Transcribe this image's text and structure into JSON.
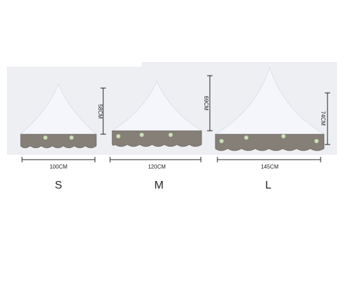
{
  "tents": [
    {
      "size": "S",
      "width": "100CM",
      "height": "58CM"
    },
    {
      "size": "M",
      "width": "120CM",
      "height": "69CM"
    },
    {
      "size": "L",
      "width": "145CM",
      "height": "74CM"
    }
  ]
}
